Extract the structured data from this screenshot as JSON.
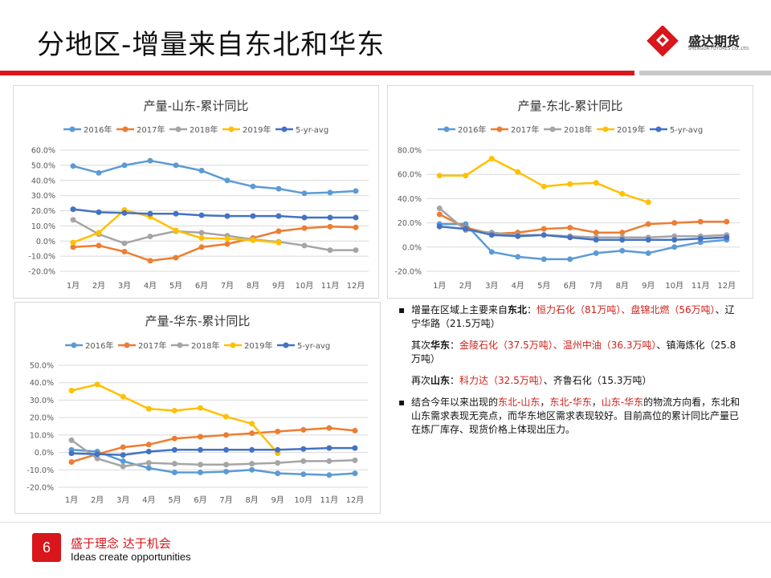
{
  "header": {
    "title": "分地区-增量来自东北和华东",
    "logo_cn": "盛达期货",
    "logo_en": "SHENGDA FUTURES CO.,LTD.",
    "accent": "#d9161b"
  },
  "colors": {
    "2016年": "#5b9bd5",
    "2017年": "#ed7d31",
    "2018年": "#a5a5a5",
    "2019年": "#ffc000",
    "5-yr-avg": "#4472c4"
  },
  "chart_data": [
    {
      "type": "line",
      "title": "产量-山东-累计同比",
      "categories": [
        "1月",
        "2月",
        "3月",
        "4月",
        "5月",
        "6月",
        "7月",
        "8月",
        "9月",
        "10月",
        "11月",
        "12月"
      ],
      "ylim": [
        -20,
        60
      ],
      "yticks": [
        "60.0%",
        "50.0%",
        "40.0%",
        "30.0%",
        "20.0%",
        "10.0%",
        "0.0%",
        "-10.0%",
        "-20.0%"
      ],
      "grid": true,
      "legend": "top",
      "series": [
        {
          "name": "2016年",
          "values": [
            49.5,
            45,
            50,
            53,
            50,
            46.5,
            40,
            36,
            34.5,
            31.5,
            32,
            33
          ]
        },
        {
          "name": "2017年",
          "values": [
            -4,
            -3,
            -7,
            -13,
            -11,
            -4,
            -2,
            2,
            6.5,
            8.5,
            9.5,
            9
          ]
        },
        {
          "name": "2018年",
          "values": [
            14,
            4.5,
            -1.5,
            3,
            6.5,
            5.5,
            3.5,
            1,
            -0.5,
            -3,
            -6,
            -6
          ]
        },
        {
          "name": "2019年",
          "values": [
            -1,
            5.5,
            20.5,
            16,
            7,
            2,
            1.5,
            0.5,
            -1,
            null,
            null,
            null
          ]
        },
        {
          "name": "5-yr-avg",
          "values": [
            21,
            19,
            18.5,
            18,
            18,
            17,
            16.5,
            16.5,
            16.5,
            15.5,
            15.5,
            15.5
          ]
        }
      ]
    },
    {
      "type": "line",
      "title": "产量-东北-累计同比",
      "categories": [
        "1月",
        "2月",
        "3月",
        "4月",
        "5月",
        "6月",
        "7月",
        "8月",
        "9月",
        "10月",
        "11月",
        "12月"
      ],
      "ylim": [
        -20,
        80
      ],
      "yticks": [
        "80.0%",
        "60.0%",
        "40.0%",
        "20.0%",
        "0.0%",
        "-20.0%"
      ],
      "grid": true,
      "legend": "top",
      "series": [
        {
          "name": "2016年",
          "values": [
            19,
            19,
            -4,
            -8,
            -10,
            -10,
            -5,
            -3,
            -5,
            0,
            4,
            6
          ]
        },
        {
          "name": "2017年",
          "values": [
            27,
            16,
            11,
            12,
            15,
            16,
            12,
            12,
            19,
            20,
            21,
            21
          ]
        },
        {
          "name": "2018年",
          "values": [
            32,
            14,
            12,
            10,
            10,
            9,
            8,
            8,
            8,
            9,
            9,
            10
          ]
        },
        {
          "name": "2019年",
          "values": [
            59,
            59,
            73,
            62,
            50,
            52,
            53,
            44,
            37,
            null,
            null,
            null
          ]
        },
        {
          "name": "5-yr-avg",
          "values": [
            17,
            15,
            10,
            9,
            10,
            8,
            6,
            6,
            6,
            6,
            7,
            8
          ]
        }
      ]
    },
    {
      "type": "line",
      "title": "产量-华东-累计同比",
      "categories": [
        "1月",
        "2月",
        "3月",
        "4月",
        "5月",
        "6月",
        "7月",
        "8月",
        "9月",
        "10月",
        "11月",
        "12月"
      ],
      "ylim": [
        -20,
        50
      ],
      "yticks": [
        "50.0%",
        "40.0%",
        "30.0%",
        "20.0%",
        "10.0%",
        "0.0%",
        "-10.0%",
        "-20.0%"
      ],
      "grid": true,
      "legend": "top",
      "series": [
        {
          "name": "2016年",
          "values": [
            1.5,
            0.5,
            -5,
            -9,
            -11.5,
            -11.5,
            -11,
            -10,
            -12,
            -12.5,
            -13,
            -12
          ]
        },
        {
          "name": "2017年",
          "values": [
            -5.5,
            -1,
            3,
            4.5,
            8,
            9,
            10,
            11,
            12,
            13,
            14,
            12.5
          ]
        },
        {
          "name": "2018年",
          "values": [
            7,
            -3.5,
            -8,
            -6,
            -6.5,
            -7,
            -7,
            -6.5,
            -6,
            -5,
            -5,
            -4.5
          ]
        },
        {
          "name": "2019年",
          "values": [
            35.5,
            39,
            32,
            25,
            24,
            25.5,
            20.5,
            16.5,
            -0.5,
            null,
            null,
            null
          ]
        },
        {
          "name": "5-yr-avg",
          "values": [
            -0.5,
            -1,
            -1.5,
            0.5,
            1.5,
            1.5,
            1.5,
            1.5,
            1.5,
            2,
            2.5,
            2.5
          ]
        }
      ]
    }
  ],
  "text": {
    "b1_a": "增量在区域上主要来自",
    "b1_b": "东北",
    "b1_c": "：",
    "b1_d": "恒力石化（81万吨）、盘锦北燃（56万吨）",
    "b1_e": "、辽宁华路（21.5万吨）",
    "b2_a": "其次",
    "b2_b": "华东",
    "b2_c": "：",
    "b2_d": "金陵石化（37.5万吨）、温州中油（36.3万吨）",
    "b2_e": "、镇海炼化（25.8万吨）",
    "b3_a": "再次",
    "b3_b": "山东",
    "b3_c": "：",
    "b3_d": "科力达（32.5万吨）",
    "b3_e": "、齐鲁石化（15.3万吨）",
    "b4_a": "结合今年以来出现的",
    "b4_b": "东北-山东",
    "b4_c": "，",
    "b4_d": "东北-华东",
    "b4_e": "，",
    "b4_f": "山东-华东",
    "b4_g": "的物流方向看，东北和山东需求表现无亮点，而华东地区需求表现较好。目前高位的累计同比产量已在炼厂库存、现货价格上体现出压力。"
  },
  "footer": {
    "page": "6",
    "slogan_cn": "盛于理念 达于机会",
    "slogan_en": "Ideas create opportunities"
  }
}
